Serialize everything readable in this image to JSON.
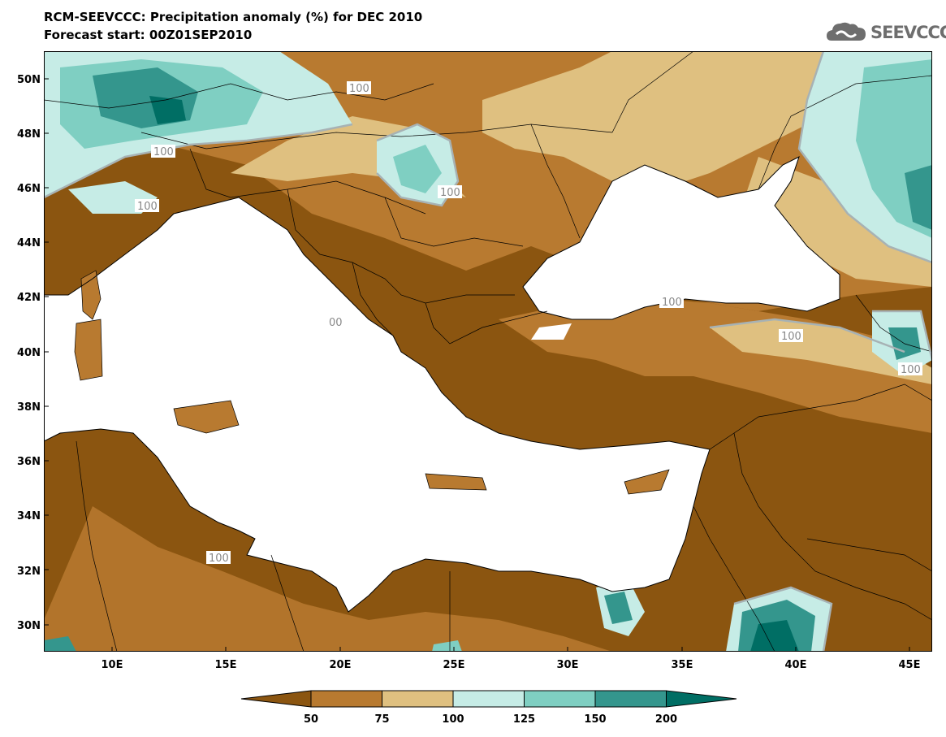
{
  "header": {
    "title_line1": "RCM-SEEVCCC: Precipitation anomaly (%) for DEC 2010",
    "title_line2": "Forecast start: 00Z01SEP2010"
  },
  "logo": {
    "text": "SEEVCCC",
    "icon": "cloud-icon"
  },
  "map": {
    "lon_range": [
      7,
      46
    ],
    "lat_range": [
      29,
      51
    ],
    "lat_ticks": [
      "50N",
      "48N",
      "46N",
      "44N",
      "42N",
      "40N",
      "38N",
      "36N",
      "34N",
      "32N",
      "30N"
    ],
    "lon_ticks": [
      "10E",
      "15E",
      "20E",
      "25E",
      "30E",
      "35E",
      "40E",
      "45E"
    ],
    "contour_labels": [
      "100",
      "100",
      "100",
      "100",
      "100",
      "100",
      "100",
      "00",
      "100"
    ]
  },
  "legend": {
    "colors": [
      "#8b5510",
      "#b87a30",
      "#dfc080",
      "#c6ece6",
      "#7fcfc2",
      "#34968d",
      "#006e64"
    ],
    "labels": [
      "50",
      "75",
      "100",
      "125",
      "150",
      "200"
    ]
  },
  "colors": {
    "dry_strong": "#8b5510",
    "dry": "#b87a30",
    "dry_light": "#dfc080",
    "wet_light": "#c6ece6",
    "wet": "#7fcfc2",
    "wet_strong": "#34968d",
    "wet_extreme": "#006e64"
  }
}
